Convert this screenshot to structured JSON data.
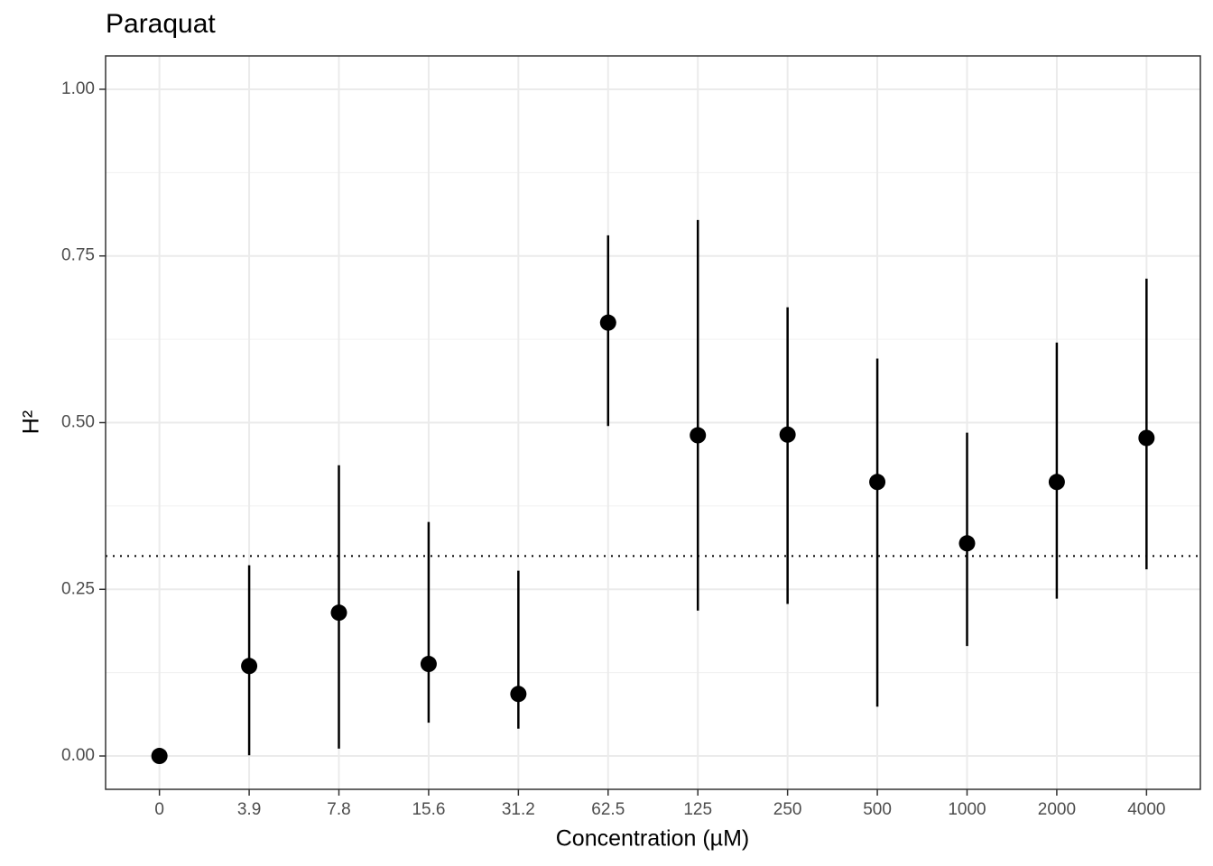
{
  "chart_data": {
    "type": "pointrange",
    "title": "Paraquat",
    "xlabel": "Concentration (µM)",
    "ylabel": "H²",
    "categories": [
      "0",
      "3.9",
      "7.8",
      "15.6",
      "31.2",
      "62.5",
      "125",
      "250",
      "500",
      "1000",
      "2000",
      "4000"
    ],
    "series": [
      {
        "color": "#000000",
        "values": [
          0,
          0.135,
          0.215,
          0.138,
          0.093,
          0.65,
          0.481,
          0.482,
          0.411,
          0.319,
          0.411,
          0.477
        ],
        "lower": [
          null,
          0.001,
          0.011,
          0.05,
          0.041,
          0.495,
          0.218,
          0.228,
          0.074,
          0.165,
          0.236,
          0.28
        ],
        "upper": [
          null,
          0.286,
          0.436,
          0.351,
          0.278,
          0.781,
          0.804,
          0.673,
          0.596,
          0.485,
          0.62,
          0.716
        ]
      }
    ],
    "hline": 0.3,
    "ylim": [
      -0.05,
      1.05
    ],
    "yticks": [
      {
        "value": 0,
        "label": "0.00"
      },
      {
        "value": 0.25,
        "label": "0.25"
      },
      {
        "value": 0.5,
        "label": "0.50"
      },
      {
        "value": 0.75,
        "label": "0.75"
      },
      {
        "value": 1,
        "label": "1.00"
      }
    ],
    "grid": true
  }
}
